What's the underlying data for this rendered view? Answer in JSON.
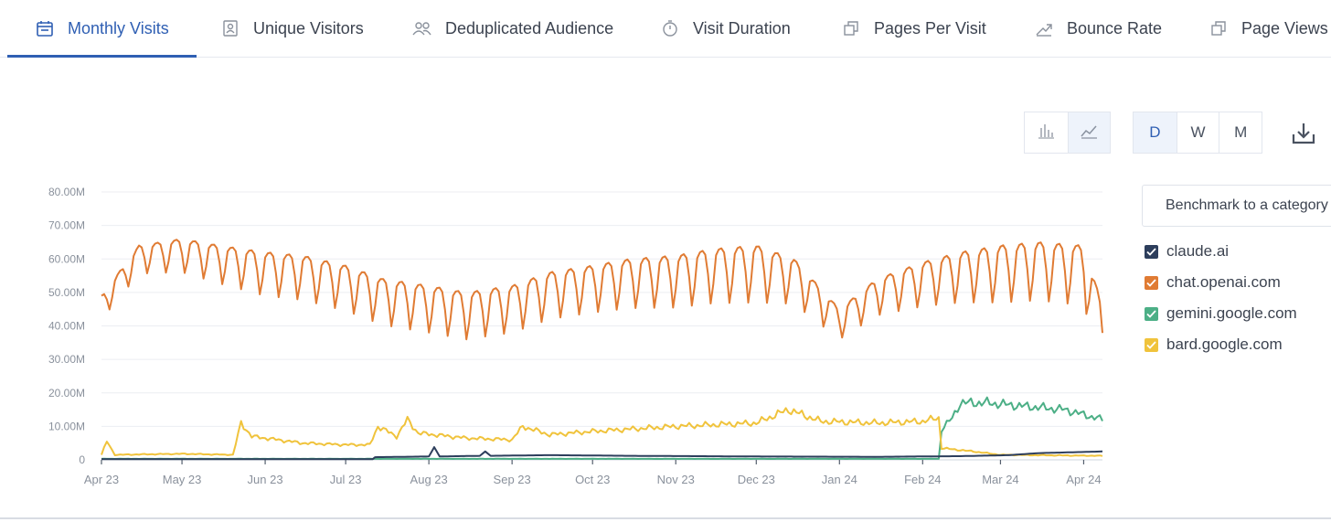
{
  "tabs": [
    {
      "label": "Monthly Visits",
      "icon": "calendar-icon",
      "active": true
    },
    {
      "label": "Unique Visitors",
      "icon": "person-badge-icon",
      "active": false
    },
    {
      "label": "Deduplicated Audience",
      "icon": "people-icon",
      "active": false
    },
    {
      "label": "Visit Duration",
      "icon": "stopwatch-icon",
      "active": false
    },
    {
      "label": "Pages Per Visit",
      "icon": "pages-icon",
      "active": false
    },
    {
      "label": "Bounce Rate",
      "icon": "trend-arrow-icon",
      "active": false
    },
    {
      "label": "Page Views",
      "icon": "pages-icon",
      "active": false
    }
  ],
  "toolbar": {
    "chart_types": [
      {
        "icon": "bar-chart-icon",
        "selected": false
      },
      {
        "icon": "line-chart-icon",
        "selected": true
      }
    ],
    "granularity": [
      {
        "label": "D",
        "selected": true
      },
      {
        "label": "W",
        "selected": false
      },
      {
        "label": "M",
        "selected": false
      }
    ],
    "download_icon": "download-icon"
  },
  "benchmark": {
    "label": "Benchmark to a category"
  },
  "legend": [
    {
      "label": "claude.ai",
      "color": "#2d3e5c"
    },
    {
      "label": "chat.openai.com",
      "color": "#e07b33"
    },
    {
      "label": "gemini.google.com",
      "color": "#4caf86"
    },
    {
      "label": "bard.google.com",
      "color": "#f0c33c"
    }
  ],
  "chart_data": {
    "type": "line",
    "title": "",
    "xlabel": "",
    "ylabel": "",
    "x_range": [
      "2023-04-01",
      "2024-04-08"
    ],
    "x_ticks": [
      "Apr 23",
      "May 23",
      "Jun 23",
      "Jul 23",
      "Aug 23",
      "Sep 23",
      "Oct 23",
      "Nov 23",
      "Dec 23",
      "Jan 24",
      "Feb 24",
      "Mar 24",
      "Apr 24"
    ],
    "ylim": [
      0,
      80000000
    ],
    "y_ticks": [
      "0",
      "10.00M",
      "20.00M",
      "30.00M",
      "40.00M",
      "50.00M",
      "60.00M",
      "70.00M",
      "80.00M"
    ],
    "grid": true,
    "legend_position": "right",
    "granularity": "daily",
    "series": [
      {
        "name": "chat.openai.com",
        "color": "#e07b33",
        "points": [
          [
            "2023-04-01",
            49
          ],
          [
            "2023-04-15",
            64
          ],
          [
            "2023-05-01",
            66
          ],
          [
            "2023-05-15",
            64
          ],
          [
            "2023-06-01",
            62
          ],
          [
            "2023-06-15",
            61
          ],
          [
            "2023-07-01",
            58
          ],
          [
            "2023-07-15",
            54
          ],
          [
            "2023-08-01",
            52
          ],
          [
            "2023-08-15",
            50
          ],
          [
            "2023-09-01",
            52
          ],
          [
            "2023-09-15",
            56
          ],
          [
            "2023-10-01",
            58
          ],
          [
            "2023-10-15",
            60
          ],
          [
            "2023-11-01",
            61
          ],
          [
            "2023-11-15",
            63
          ],
          [
            "2023-12-01",
            64
          ],
          [
            "2023-12-15",
            60
          ],
          [
            "2024-01-01",
            45
          ],
          [
            "2024-01-15",
            54
          ],
          [
            "2024-02-01",
            59
          ],
          [
            "2024-02-15",
            62
          ],
          [
            "2024-03-01",
            64
          ],
          [
            "2024-03-15",
            65
          ],
          [
            "2024-04-01",
            64
          ],
          [
            "2024-04-08",
            46
          ]
        ],
        "trough_offset": [
          [
            "2023-04-01",
            7
          ],
          [
            "2023-06-01",
            13
          ],
          [
            "2023-08-01",
            14
          ],
          [
            "2023-10-01",
            14
          ],
          [
            "2023-12-01",
            17
          ],
          [
            "2024-01-01",
            9
          ],
          [
            "2024-03-01",
            17
          ],
          [
            "2024-04-08",
            18
          ]
        ]
      },
      {
        "name": "bard.google.com",
        "color": "#f0c33c",
        "points": [
          [
            "2023-04-01",
            1.5
          ],
          [
            "2023-04-03",
            5.5
          ],
          [
            "2023-04-06",
            1.5
          ],
          [
            "2023-05-01",
            1.8
          ],
          [
            "2023-05-20",
            1.5
          ],
          [
            "2023-05-23",
            11
          ],
          [
            "2023-05-27",
            7
          ],
          [
            "2023-06-15",
            5
          ],
          [
            "2023-07-01",
            4.5
          ],
          [
            "2023-07-10",
            4.5
          ],
          [
            "2023-07-13",
            10
          ],
          [
            "2023-07-20",
            7
          ],
          [
            "2023-07-24",
            12
          ],
          [
            "2023-07-28",
            8
          ],
          [
            "2023-08-15",
            6.5
          ],
          [
            "2023-09-01",
            6
          ],
          [
            "2023-09-05",
            10
          ],
          [
            "2023-09-15",
            7.5
          ],
          [
            "2023-10-01",
            8.5
          ],
          [
            "2023-11-01",
            10
          ],
          [
            "2023-12-01",
            11
          ],
          [
            "2023-12-13",
            15
          ],
          [
            "2023-12-25",
            11.5
          ],
          [
            "2024-01-15",
            11
          ],
          [
            "2024-02-01",
            11.5
          ],
          [
            "2024-02-07",
            12.5
          ],
          [
            "2024-02-08",
            3.5
          ],
          [
            "2024-02-20",
            2.5
          ],
          [
            "2024-03-01",
            1.5
          ],
          [
            "2024-04-08",
            1.2
          ]
        ]
      },
      {
        "name": "gemini.google.com",
        "color": "#4caf86",
        "points": [
          [
            "2023-04-01",
            0.3
          ],
          [
            "2024-02-07",
            0.3
          ],
          [
            "2024-02-08",
            9
          ],
          [
            "2024-02-12",
            12.5
          ],
          [
            "2024-02-15",
            17
          ],
          [
            "2024-02-25",
            17
          ],
          [
            "2024-03-10",
            16
          ],
          [
            "2024-03-25",
            15
          ],
          [
            "2024-04-08",
            12
          ]
        ]
      },
      {
        "name": "claude.ai",
        "color": "#2d3e5c",
        "points": [
          [
            "2023-04-01",
            0.2
          ],
          [
            "2023-07-11",
            0.2
          ],
          [
            "2023-07-12",
            0.8
          ],
          [
            "2023-08-01",
            1
          ],
          [
            "2023-08-03",
            3.8
          ],
          [
            "2023-08-05",
            1
          ],
          [
            "2023-08-20",
            1.2
          ],
          [
            "2023-08-22",
            2.5
          ],
          [
            "2023-08-24",
            1.2
          ],
          [
            "2023-09-15",
            1.4
          ],
          [
            "2023-10-15",
            1.2
          ],
          [
            "2023-12-01",
            1
          ],
          [
            "2024-01-15",
            0.9
          ],
          [
            "2024-02-15",
            1.1
          ],
          [
            "2024-03-04",
            1.4
          ],
          [
            "2024-03-15",
            2
          ],
          [
            "2024-04-08",
            2.5
          ]
        ]
      }
    ]
  }
}
